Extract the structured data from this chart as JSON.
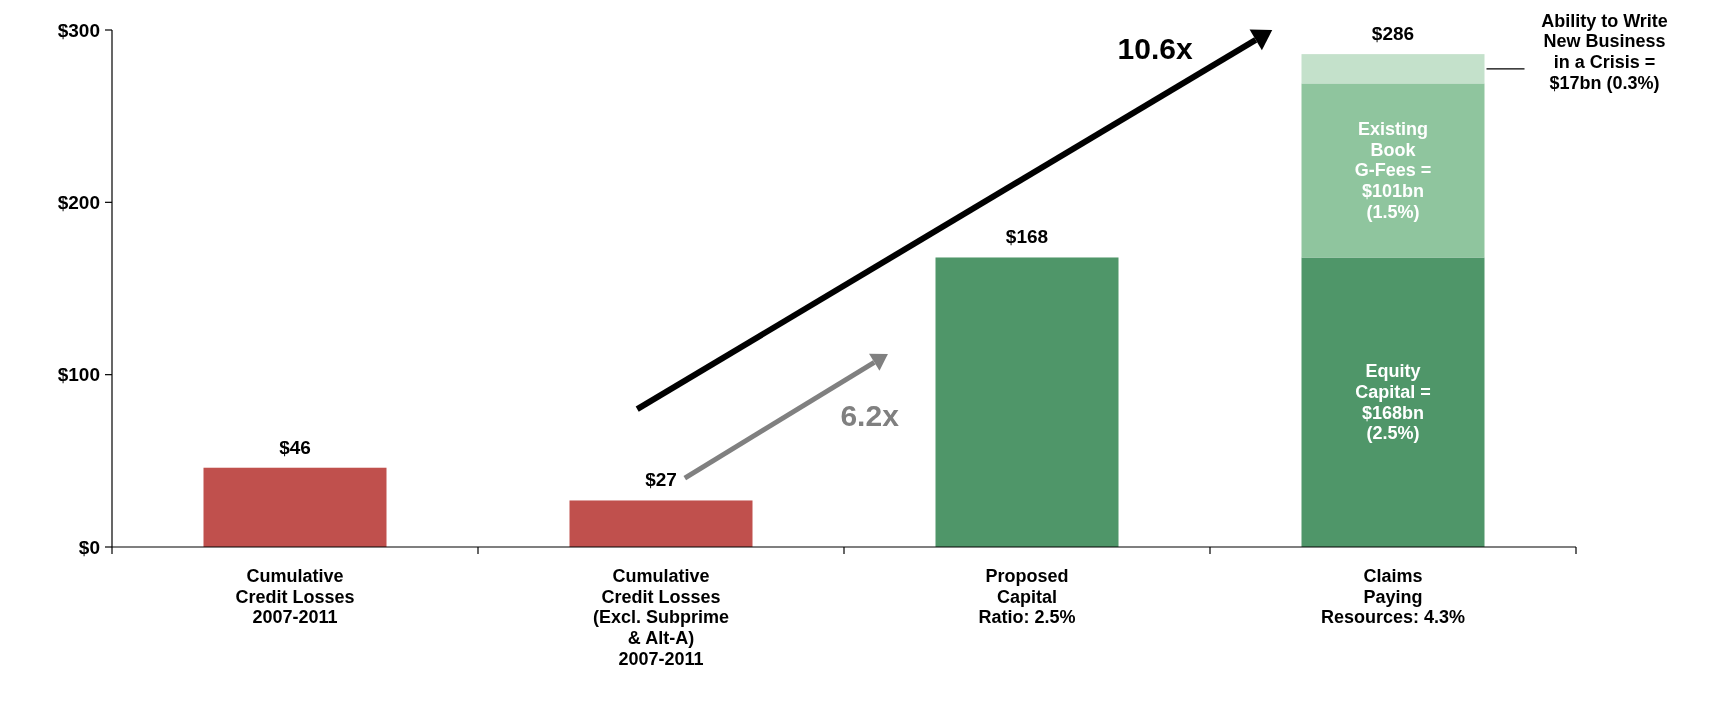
{
  "chart_data": {
    "type": "bar",
    "stacked": true,
    "categories": [
      "Cumulative\nCredit Losses\n2007-2011",
      "Cumulative\nCredit Losses\n(Excl. Subprime\n& Alt-A)\n2007-2011",
      "Proposed\nCapital\nRatio: 2.5%",
      "Claims\nPaying\nResources: 4.3%"
    ],
    "series": [
      {
        "colors": [
          "#c0504d",
          "#c0504d",
          "#4f9669",
          "#4f9669"
        ],
        "values": [
          46,
          27,
          168,
          168
        ]
      },
      {
        "color": "#8fc59e",
        "values": [
          null,
          null,
          null,
          101
        ]
      },
      {
        "color": "#c4e1cb",
        "values": [
          null,
          null,
          null,
          17
        ]
      }
    ],
    "totals": [
      "$46",
      "$27",
      "$168",
      "$286"
    ],
    "ylim": [
      0,
      300
    ],
    "yticks": [
      {
        "value": 0,
        "label": "$0"
      },
      {
        "value": 100,
        "label": "$100"
      },
      {
        "value": 200,
        "label": "$200"
      },
      {
        "value": 300,
        "label": "$300"
      }
    ],
    "grid": false,
    "annotations": [
      "Equity\nCapital =\n$168bn\n(2.5%)",
      "Existing\nBook\nG-Fees =\n$101bn\n(1.5%)",
      "Ability to Write\nNew Business\nin a Crisis =\n$17bn (0.3%)",
      "10.6x",
      "6.2x"
    ]
  }
}
